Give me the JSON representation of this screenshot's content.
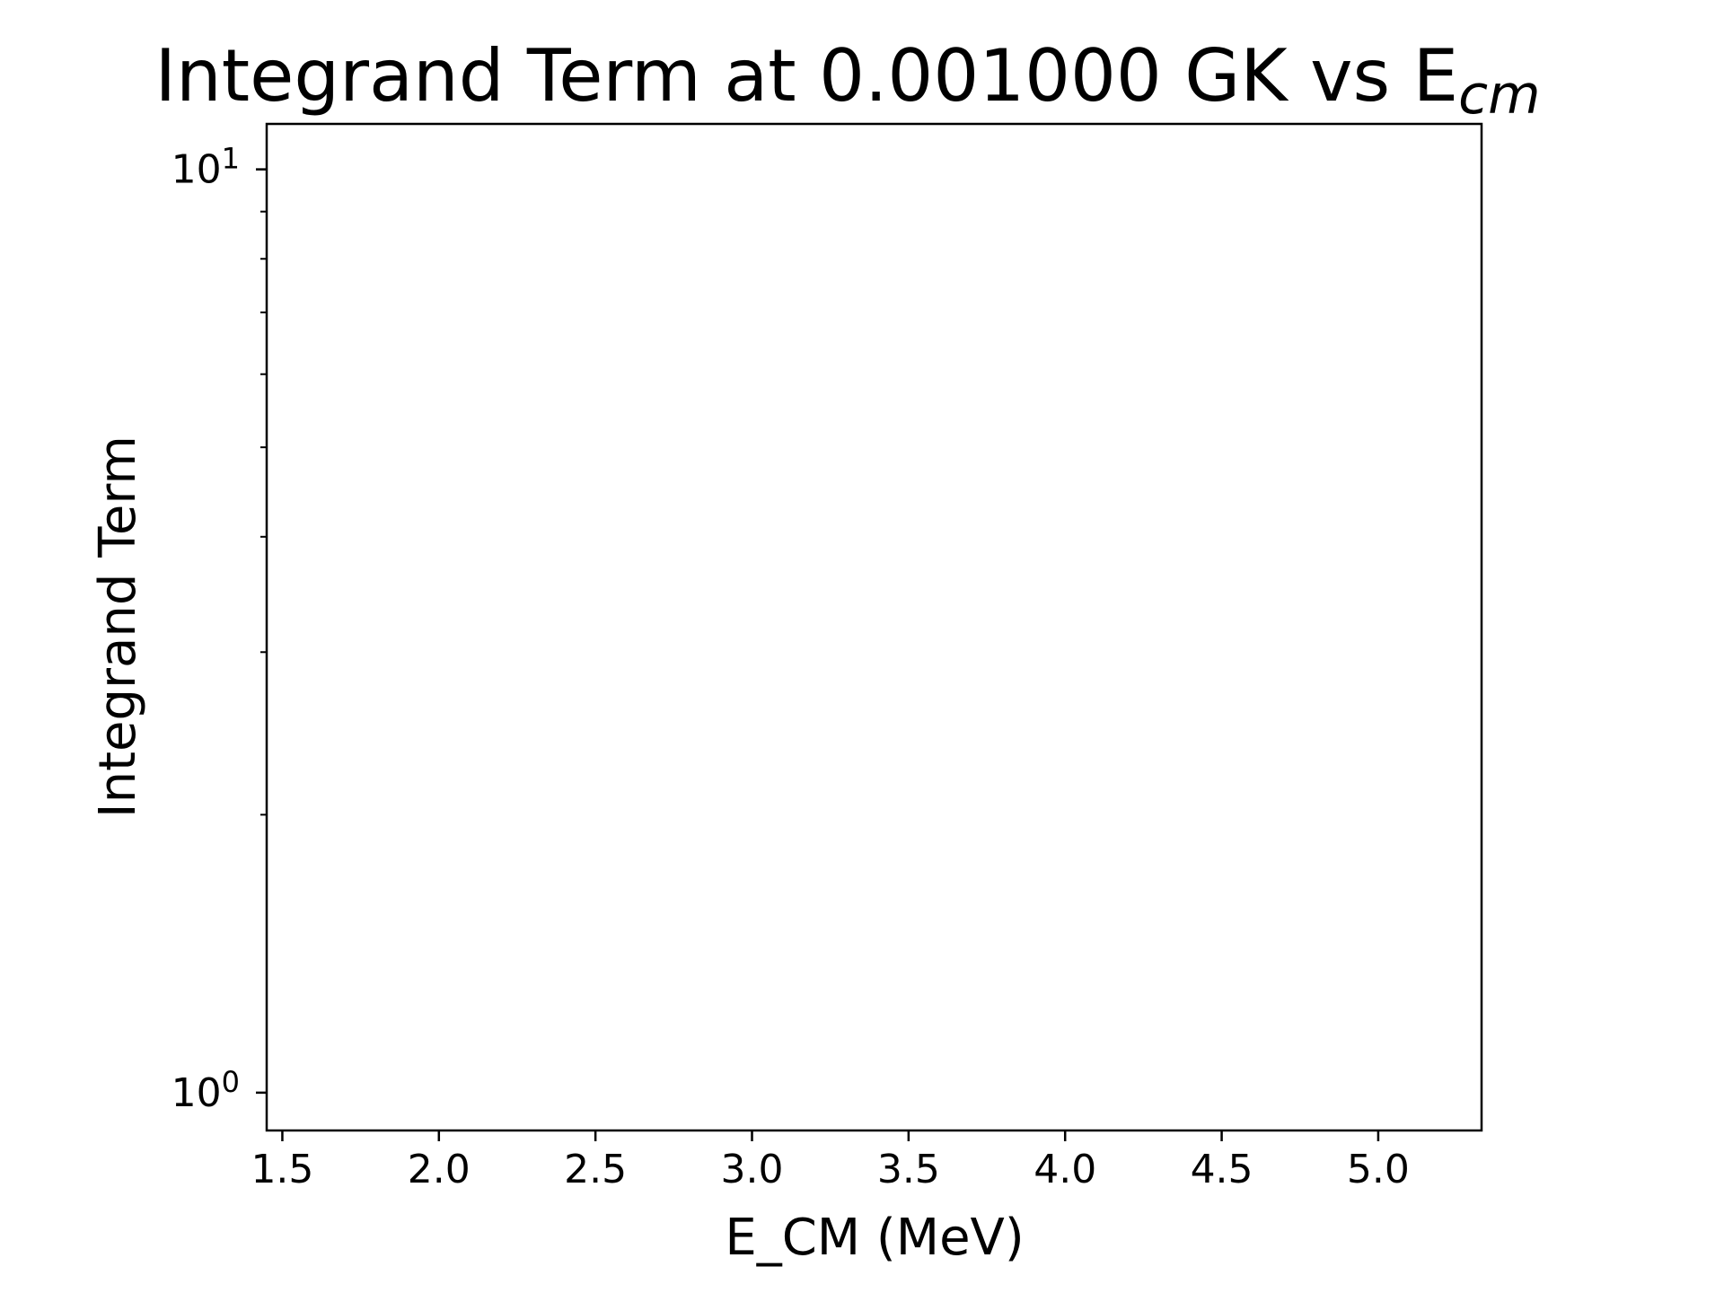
{
  "chart_data": {
    "type": "line",
    "title": "Integrand Term at 0.001000 GK vs E",
    "title_subscript": "cm",
    "xlabel": "E_CM (MeV)",
    "ylabel": "Integrand Term",
    "xscale": "linear",
    "yscale": "log",
    "xlim": [
      1.45,
      5.33
    ],
    "ylim": [
      0.91,
      11.2
    ],
    "x_ticks": [
      {
        "value": 1.5,
        "label": "1.5"
      },
      {
        "value": 2.0,
        "label": "2.0"
      },
      {
        "value": 2.5,
        "label": "2.5"
      },
      {
        "value": 3.0,
        "label": "3.0"
      },
      {
        "value": 3.5,
        "label": "3.5"
      },
      {
        "value": 4.0,
        "label": "4.0"
      },
      {
        "value": 4.5,
        "label": "4.5"
      },
      {
        "value": 5.0,
        "label": "5.0"
      }
    ],
    "y_major_ticks": [
      {
        "value": 1,
        "base": "10",
        "exponent": "0"
      },
      {
        "value": 10,
        "base": "10",
        "exponent": "1"
      }
    ],
    "y_minor_ticks": [
      2,
      3,
      4,
      5,
      6,
      7,
      8,
      9
    ],
    "series": [],
    "grid": false,
    "legend": "none"
  }
}
